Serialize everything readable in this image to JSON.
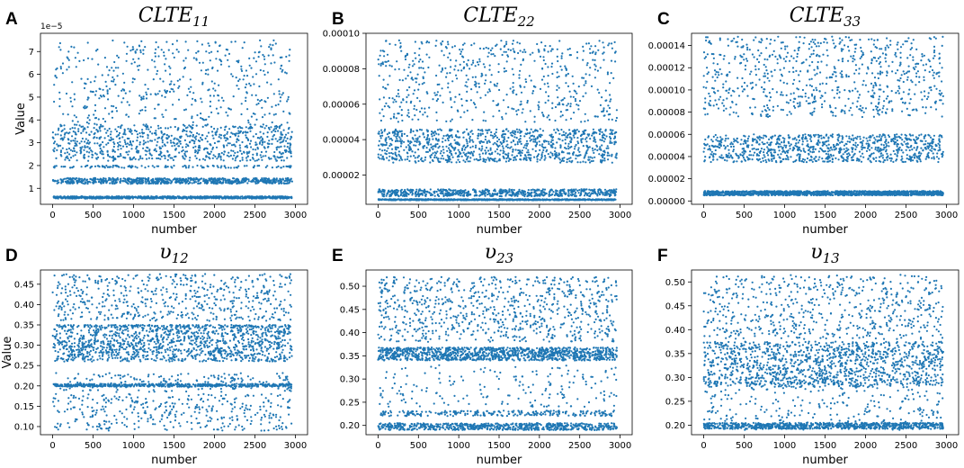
{
  "point_color": "#1f77b4",
  "chart_data": [
    {
      "id": "A",
      "type": "scatter",
      "title_main": "CLTE",
      "title_sub": "11",
      "xlabel": "number",
      "ylabel": "Value",
      "xlim": [
        -150,
        3150
      ],
      "ylim": [
        0.3,
        7.8
      ],
      "scale_note": "1e−5",
      "xticks": [
        0,
        500,
        1000,
        1500,
        2000,
        2500,
        3000
      ],
      "xtick_labels": [
        "0",
        "500",
        "1000",
        "1500",
        "2000",
        "2500",
        "3000"
      ],
      "yticks": [
        1,
        2,
        3,
        4,
        5,
        6,
        7
      ],
      "ytick_labels": [
        "1",
        "2",
        "3",
        "4",
        "5",
        "6",
        "7"
      ],
      "n_points": 3000,
      "clusters": [
        {
          "frac": 0.28,
          "min": 0.55,
          "max": 0.65
        },
        {
          "frac": 0.24,
          "min": 1.2,
          "max": 1.45
        },
        {
          "frac": 0.04,
          "min": 1.9,
          "max": 2.0
        },
        {
          "frac": 0.28,
          "min": 2.2,
          "max": 3.8
        },
        {
          "frac": 0.16,
          "min": 3.8,
          "max": 7.5
        }
      ]
    },
    {
      "id": "B",
      "type": "scatter",
      "title_main": "CLTE",
      "title_sub": "22",
      "xlabel": "number",
      "ylabel": "",
      "xlim": [
        -150,
        3150
      ],
      "ylim": [
        3.5e-06,
        0.0001
      ],
      "scale_note": "",
      "xticks": [
        0,
        500,
        1000,
        1500,
        2000,
        2500,
        3000
      ],
      "xtick_labels": [
        "0",
        "500",
        "1000",
        "1500",
        "2000",
        "2500",
        "3000"
      ],
      "yticks": [
        2e-05,
        4e-05,
        6e-05,
        8e-05,
        0.0001
      ],
      "ytick_labels": [
        "0.00002",
        "0.00004",
        "0.00006",
        "0.00008",
        "0.00010"
      ],
      "n_points": 3000,
      "clusters": [
        {
          "frac": 0.25,
          "min": 5.8e-06,
          "max": 6.4e-06
        },
        {
          "frac": 0.22,
          "min": 8e-06,
          "max": 1.2e-05
        },
        {
          "frac": 0.33,
          "min": 2.7e-05,
          "max": 4.6e-05
        },
        {
          "frac": 0.2,
          "min": 5e-05,
          "max": 9.6e-05
        }
      ]
    },
    {
      "id": "C",
      "type": "scatter",
      "title_main": "CLTE",
      "title_sub": "33",
      "xlabel": "number",
      "ylabel": "",
      "xlim": [
        -150,
        3150
      ],
      "ylim": [
        -3e-06,
        0.000151
      ],
      "scale_note": "",
      "xticks": [
        0,
        500,
        1000,
        1500,
        2000,
        2500,
        3000
      ],
      "xtick_labels": [
        "0",
        "500",
        "1000",
        "1500",
        "2000",
        "2500",
        "3000"
      ],
      "yticks": [
        0,
        2e-05,
        4e-05,
        6e-05,
        8e-05,
        0.0001,
        0.00012,
        0.00014
      ],
      "ytick_labels": [
        "0.00000",
        "0.00002",
        "0.00004",
        "0.00006",
        "0.00008",
        "0.00010",
        "0.00012",
        "0.00014"
      ],
      "n_points": 3000,
      "clusters": [
        {
          "frac": 0.45,
          "min": 5e-06,
          "max": 9e-06
        },
        {
          "frac": 0.3,
          "min": 3.5e-05,
          "max": 6e-05
        },
        {
          "frac": 0.25,
          "min": 7.5e-05,
          "max": 0.000148
        }
      ]
    },
    {
      "id": "D",
      "type": "scatter",
      "title_main": "υ",
      "title_sub": "12",
      "xlabel": "number",
      "ylabel": "Value",
      "xlim": [
        -150,
        3150
      ],
      "ylim": [
        0.08,
        0.485
      ],
      "scale_note": "",
      "xticks": [
        0,
        500,
        1000,
        1500,
        2000,
        2500,
        3000
      ],
      "xtick_labels": [
        "0",
        "500",
        "1000",
        "1500",
        "2000",
        "2500",
        "3000"
      ],
      "yticks": [
        0.1,
        0.15,
        0.2,
        0.25,
        0.3,
        0.35,
        0.4,
        0.45
      ],
      "ytick_labels": [
        "0.10",
        "0.15",
        "0.20",
        "0.25",
        "0.30",
        "0.35",
        "0.40",
        "0.45"
      ],
      "n_points": 3000,
      "clusters": [
        {
          "frac": 0.12,
          "min": 0.09,
          "max": 0.18
        },
        {
          "frac": 0.18,
          "min": 0.198,
          "max": 0.205
        },
        {
          "frac": 0.06,
          "min": 0.185,
          "max": 0.232
        },
        {
          "frac": 0.42,
          "min": 0.26,
          "max": 0.35
        },
        {
          "frac": 0.04,
          "min": 0.345,
          "max": 0.35
        },
        {
          "frac": 0.18,
          "min": 0.36,
          "max": 0.475
        }
      ]
    },
    {
      "id": "E",
      "type": "scatter",
      "title_main": "υ",
      "title_sub": "23",
      "xlabel": "number",
      "ylabel": "",
      "xlim": [
        -150,
        3150
      ],
      "ylim": [
        0.18,
        0.535
      ],
      "scale_note": "",
      "xticks": [
        0,
        500,
        1000,
        1500,
        2000,
        2500,
        3000
      ],
      "xtick_labels": [
        "0",
        "500",
        "1000",
        "1500",
        "2000",
        "2500",
        "3000"
      ],
      "yticks": [
        0.2,
        0.25,
        0.3,
        0.35,
        0.4,
        0.45,
        0.5
      ],
      "ytick_labels": [
        "0.20",
        "0.25",
        "0.30",
        "0.35",
        "0.40",
        "0.45",
        "0.50"
      ],
      "n_points": 3000,
      "clusters": [
        {
          "frac": 0.22,
          "min": 0.19,
          "max": 0.205
        },
        {
          "frac": 0.08,
          "min": 0.22,
          "max": 0.232
        },
        {
          "frac": 0.06,
          "min": 0.24,
          "max": 0.33
        },
        {
          "frac": 0.38,
          "min": 0.34,
          "max": 0.368
        },
        {
          "frac": 0.26,
          "min": 0.38,
          "max": 0.52
        }
      ]
    },
    {
      "id": "F",
      "type": "scatter",
      "title_main": "υ",
      "title_sub": "13",
      "xlabel": "number",
      "ylabel": "",
      "xlim": [
        -150,
        3150
      ],
      "ylim": [
        0.18,
        0.525
      ],
      "scale_note": "",
      "xticks": [
        0,
        500,
        1000,
        1500,
        2000,
        2500,
        3000
      ],
      "xtick_labels": [
        "0",
        "500",
        "1000",
        "1500",
        "2000",
        "2500",
        "3000"
      ],
      "yticks": [
        0.2,
        0.25,
        0.3,
        0.35,
        0.4,
        0.45,
        0.5
      ],
      "ytick_labels": [
        "0.20",
        "0.25",
        "0.30",
        "0.35",
        "0.40",
        "0.45",
        "0.50"
      ],
      "n_points": 3000,
      "clusters": [
        {
          "frac": 0.28,
          "min": 0.192,
          "max": 0.205
        },
        {
          "frac": 0.1,
          "min": 0.19,
          "max": 0.3
        },
        {
          "frac": 0.42,
          "min": 0.28,
          "max": 0.375
        },
        {
          "frac": 0.2,
          "min": 0.38,
          "max": 0.515
        }
      ]
    }
  ]
}
